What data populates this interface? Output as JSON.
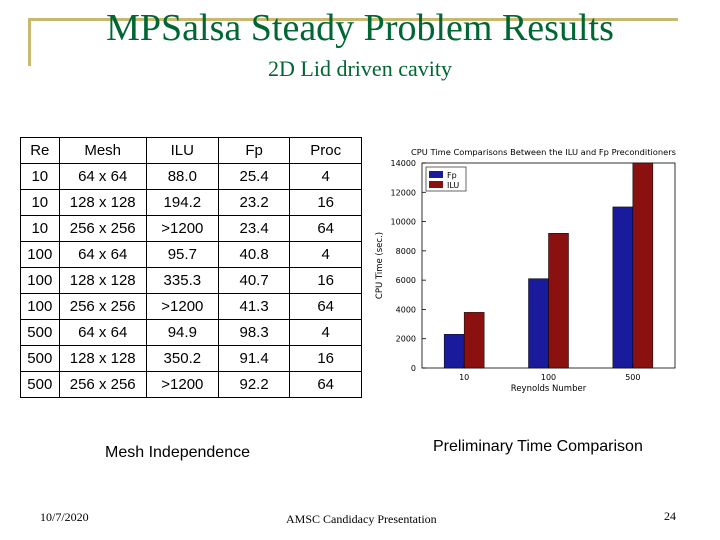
{
  "header": {
    "title": "MPSalsa Steady Problem Results",
    "subtitle": "2D Lid driven cavity"
  },
  "table": {
    "headers": [
      "Re",
      "Mesh",
      "ILU",
      "Fp",
      "Proc"
    ],
    "rows": [
      [
        "10",
        "64 x 64",
        "88.0",
        "25.4",
        "4"
      ],
      [
        "10",
        "128 x 128",
        "194.2",
        "23.2",
        "16"
      ],
      [
        "10",
        "256 x 256",
        ">1200",
        "23.4",
        "64"
      ],
      [
        "100",
        "64 x 64",
        "95.7",
        "40.8",
        "4"
      ],
      [
        "100",
        "128 x 128",
        "335.3",
        "40.7",
        "16"
      ],
      [
        "100",
        "256 x 256",
        ">1200",
        "41.3",
        "64"
      ],
      [
        "500",
        "64 x 64",
        "94.9",
        "98.3",
        "4"
      ],
      [
        "500",
        "128 x 128",
        "350.2",
        "91.4",
        "16"
      ],
      [
        "500",
        "256 x 256",
        ">1200",
        "92.2",
        "64"
      ]
    ]
  },
  "captions": {
    "table": "Mesh Independence",
    "chart": "Preliminary Time Comparison"
  },
  "footer": {
    "date": "10/7/2020",
    "center": "AMSC Candidacy Presentation",
    "page": "24"
  },
  "chart_data": {
    "type": "bar",
    "title": "CPU Time Comparisons Between the ILU and Fp Preconditioners",
    "xlabel": "Reynolds Number",
    "ylabel": "CPU Time (sec.)",
    "categories": [
      "10",
      "100",
      "500"
    ],
    "series": [
      {
        "name": "Fp",
        "values": [
          2300,
          6100,
          11000
        ],
        "color": "#1a1a9c"
      },
      {
        "name": "ILU",
        "values": [
          3800,
          9200,
          14000
        ],
        "color": "#8b1010"
      }
    ],
    "ylim": [
      0,
      14000
    ],
    "yticks": [
      "0",
      "2000",
      "4000",
      "6000",
      "8000",
      "10000",
      "12000",
      "14000"
    ],
    "legend": "top-left",
    "grid": false
  }
}
